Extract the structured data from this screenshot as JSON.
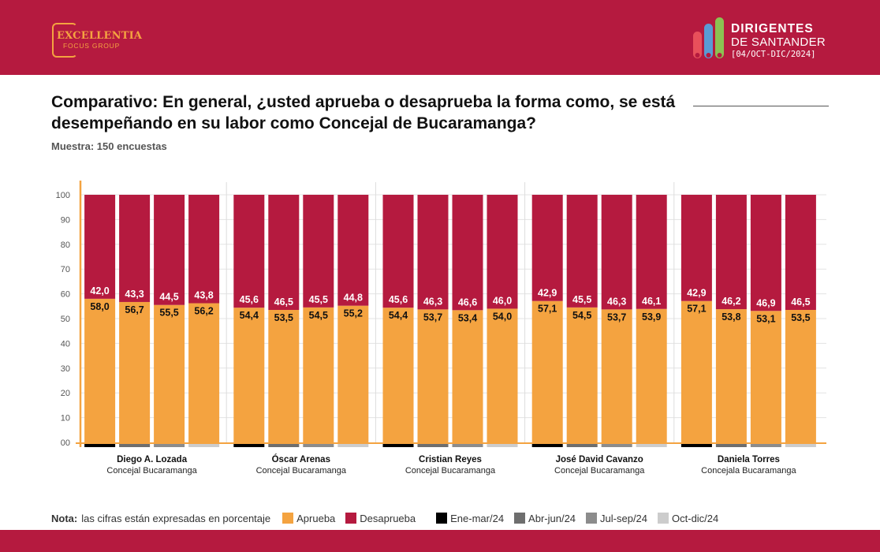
{
  "header": {
    "brand_left": {
      "line1": "EXCELLENTIA",
      "line2": "FOCUS GROUP"
    },
    "brand_right": {
      "line1": "DIRIGENTES",
      "line2": "DE SANTANDER",
      "line3": "[04/OCT-DIC/2024]"
    }
  },
  "title": "Comparativo: En general, ¿usted aprueba o desaprueba la forma como, se está desempeñando en su labor como Concejal de Bucaramanga?",
  "subtitle": "Muestra: 150 encuestas",
  "legend": {
    "nota_label": "Nota:",
    "nota_text": "las cifras están expresadas en porcentaje",
    "items": [
      {
        "label": "Aprueba",
        "color": "#f4a340"
      },
      {
        "label": "Desaprueba",
        "color": "#b51a3f"
      },
      {
        "label": "Ene-mar/24",
        "color": "#000000"
      },
      {
        "label": "Abr-jun/24",
        "color": "#6e6e6e"
      },
      {
        "label": "Jul-sep/24",
        "color": "#8c8c8c"
      },
      {
        "label": "Oct-dic/24",
        "color": "#cccccc"
      }
    ]
  },
  "colors": {
    "aprueba": "#f4a340",
    "desaprueba": "#b51a3f",
    "brand": "#b51a3f"
  },
  "chart_data": {
    "type": "bar",
    "stacked": true,
    "ylim": [
      0,
      100
    ],
    "yticks": [
      "00",
      "10",
      "20",
      "30",
      "40",
      "50",
      "60",
      "70",
      "80",
      "90",
      "100"
    ],
    "grid": true,
    "series_names": [
      "Aprueba",
      "Desaprueba"
    ],
    "periods": [
      "Ene-mar/24",
      "Abr-jun/24",
      "Jul-sep/24",
      "Oct-dic/24"
    ],
    "period_colors": [
      "#000000",
      "#6e6e6e",
      "#8c8c8c",
      "#cccccc"
    ],
    "groups": [
      {
        "name": "Diego A. Lozada",
        "role": "Concejal Bucaramanga",
        "aprueba": [
          "58,0",
          "56,7",
          "55,5",
          "56,2"
        ],
        "desaprueba": [
          "42,0",
          "43,3",
          "44,5",
          "43,8"
        ]
      },
      {
        "name": "Óscar Arenas",
        "role": "Concejal Bucaramanga",
        "aprueba": [
          "54,4",
          "53,5",
          "54,5",
          "55,2"
        ],
        "desaprueba": [
          "45,6",
          "46,5",
          "45,5",
          "44,8"
        ]
      },
      {
        "name": "Cristian Reyes",
        "role": "Concejal Bucaramanga",
        "aprueba": [
          "54,4",
          "53,7",
          "53,4",
          "54,0"
        ],
        "desaprueba": [
          "45,6",
          "46,3",
          "46,6",
          "46,0"
        ]
      },
      {
        "name": "José David Cavanzo",
        "role": "Concejal Bucaramanga",
        "aprueba": [
          "57,1",
          "54,5",
          "53,7",
          "53,9"
        ],
        "desaprueba": [
          "42,9",
          "45,5",
          "46,3",
          "46,1"
        ]
      },
      {
        "name": "Daniela Torres",
        "role": "Concejala Bucaramanga",
        "aprueba": [
          "57,1",
          "53,8",
          "53,1",
          "53,5"
        ],
        "desaprueba": [
          "42,9",
          "46,2",
          "46,9",
          "46,5"
        ]
      }
    ]
  }
}
